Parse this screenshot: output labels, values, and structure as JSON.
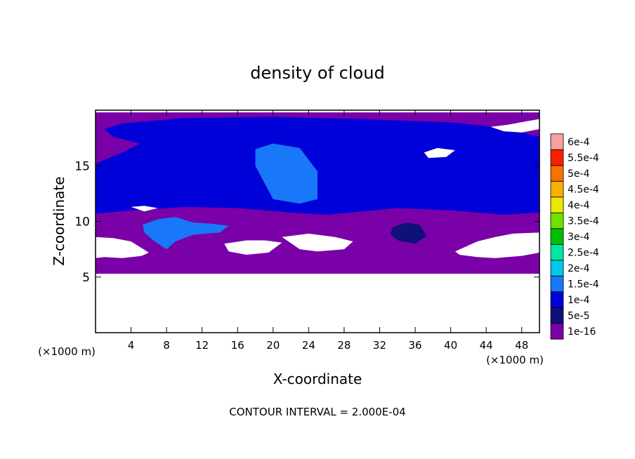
{
  "chart_data": {
    "type": "heatmap",
    "title": "density of cloud",
    "xlabel": "X-coordinate",
    "ylabel": "Z-coordinate",
    "x_unit_left": "(×1000 m)",
    "x_unit_right": "(×1000 m)",
    "xlim": [
      0,
      50
    ],
    "ylim": [
      0,
      20
    ],
    "x_ticks": [
      4,
      8,
      12,
      16,
      20,
      24,
      28,
      32,
      36,
      40,
      44,
      48
    ],
    "y_ticks": [
      5,
      10,
      15
    ],
    "footer": "CONTOUR INTERVAL = 2.000E-04",
    "colorbar": {
      "levels": [
        "1e-16",
        "5e-5",
        "1e-4",
        "1.5e-4",
        "2e-4",
        "2.5e-4",
        "3e-4",
        "3.5e-4",
        "4e-4",
        "4.5e-4",
        "5e-4",
        "5.5e-4",
        "6e-4"
      ],
      "colors": [
        "#7a00a8",
        "#10107a",
        "#0000d8",
        "#1878f8",
        "#00c8e8",
        "#00e8a0",
        "#00c000",
        "#70e000",
        "#e8e800",
        "#f8b000",
        "#f87000",
        "#f82000",
        "#f8a0a0"
      ]
    },
    "regions": [
      {
        "name": "purple-layer",
        "level": 0,
        "points": [
          [
            0,
            5.3
          ],
          [
            50,
            5.3
          ],
          [
            50,
            19.8
          ],
          [
            0,
            19.8
          ]
        ]
      },
      {
        "name": "upper-blue-band",
        "level": 2,
        "points": [
          [
            3,
            18.8
          ],
          [
            10,
            19.3
          ],
          [
            20,
            19.4
          ],
          [
            30,
            19.2
          ],
          [
            40,
            18.9
          ],
          [
            46,
            18.4
          ],
          [
            50,
            17.6
          ],
          [
            50,
            10.8
          ],
          [
            46,
            10.6
          ],
          [
            40,
            11.0
          ],
          [
            34,
            11.2
          ],
          [
            30,
            10.9
          ],
          [
            26,
            10.6
          ],
          [
            22,
            10.8
          ],
          [
            16,
            11.2
          ],
          [
            10,
            11.3
          ],
          [
            4,
            11.0
          ],
          [
            0,
            10.7
          ],
          [
            0,
            15.2
          ],
          [
            3,
            16.2
          ],
          [
            5,
            17.0
          ],
          [
            2,
            17.6
          ],
          [
            1,
            18.3
          ]
        ]
      },
      {
        "name": "core-blue-1",
        "level": 3,
        "points": [
          [
            18,
            16.5
          ],
          [
            20,
            17.0
          ],
          [
            23,
            16.6
          ],
          [
            25,
            14.5
          ],
          [
            25,
            12.0
          ],
          [
            23,
            11.6
          ],
          [
            20,
            12.0
          ],
          [
            19,
            13.5
          ],
          [
            18,
            15.0
          ]
        ]
      },
      {
        "name": "core-blue-2",
        "level": 3,
        "points": [
          [
            5.3,
            9.7
          ],
          [
            7,
            10.2
          ],
          [
            9,
            10.4
          ],
          [
            11,
            9.9
          ],
          [
            13,
            9.8
          ],
          [
            15,
            9.6
          ],
          [
            14,
            9.0
          ],
          [
            11,
            8.8
          ],
          [
            9,
            8.2
          ],
          [
            8,
            7.5
          ],
          [
            6.5,
            8.3
          ],
          [
            5.5,
            9.0
          ]
        ]
      },
      {
        "name": "dark-core",
        "level": 1,
        "points": [
          [
            33.5,
            9.5
          ],
          [
            35,
            9.9
          ],
          [
            36.5,
            9.7
          ],
          [
            37.3,
            8.7
          ],
          [
            36,
            8.0
          ],
          [
            34,
            8.3
          ],
          [
            33.2,
            8.9
          ]
        ]
      },
      {
        "name": "core-blue-3",
        "level": 2,
        "points": [
          [
            10,
            13.0
          ],
          [
            12,
            13.5
          ],
          [
            13.5,
            13.0
          ],
          [
            12,
            12.3
          ],
          [
            10.2,
            12.4
          ]
        ]
      }
    ],
    "gaps": [
      {
        "name": "gap-left",
        "points": [
          [
            0,
            8.6
          ],
          [
            2,
            8.5
          ],
          [
            4,
            8.2
          ],
          [
            6,
            7.2
          ],
          [
            5.2,
            6.9
          ],
          [
            3,
            6.7
          ],
          [
            1,
            6.8
          ],
          [
            0,
            6.7
          ]
        ]
      },
      {
        "name": "gap-mid-1",
        "points": [
          [
            14.5,
            8.0
          ],
          [
            17,
            8.3
          ],
          [
            19,
            8.3
          ],
          [
            21,
            8.1
          ],
          [
            19.5,
            7.2
          ],
          [
            17,
            7.0
          ],
          [
            15,
            7.3
          ]
        ]
      },
      {
        "name": "gap-mid-2",
        "points": [
          [
            21,
            8.6
          ],
          [
            24,
            8.9
          ],
          [
            27,
            8.6
          ],
          [
            29,
            8.2
          ],
          [
            28,
            7.5
          ],
          [
            25,
            7.3
          ],
          [
            23,
            7.5
          ]
        ]
      },
      {
        "name": "gap-right",
        "points": [
          [
            40.5,
            7.3
          ],
          [
            43,
            8.2
          ],
          [
            45,
            8.6
          ],
          [
            47,
            8.9
          ],
          [
            50,
            9.0
          ],
          [
            50,
            7.2
          ],
          [
            48,
            6.9
          ],
          [
            45,
            6.7
          ],
          [
            43,
            6.8
          ],
          [
            41,
            7.0
          ]
        ]
      },
      {
        "name": "gap-upper-right",
        "points": [
          [
            44.5,
            18.5
          ],
          [
            46.5,
            18.7
          ],
          [
            48.5,
            19.0
          ],
          [
            50,
            19.2
          ],
          [
            50,
            18.3
          ],
          [
            48,
            18.0
          ],
          [
            46,
            18.1
          ]
        ]
      },
      {
        "name": "gap-upper-mid",
        "points": [
          [
            37,
            16.2
          ],
          [
            38.5,
            16.6
          ],
          [
            40.5,
            16.4
          ],
          [
            39.5,
            15.8
          ],
          [
            37.5,
            15.7
          ]
        ]
      },
      {
        "name": "gap-left-small",
        "points": [
          [
            4,
            11.3
          ],
          [
            5.5,
            11.4
          ],
          [
            7,
            11.2
          ],
          [
            5.5,
            10.9
          ]
        ]
      }
    ]
  }
}
